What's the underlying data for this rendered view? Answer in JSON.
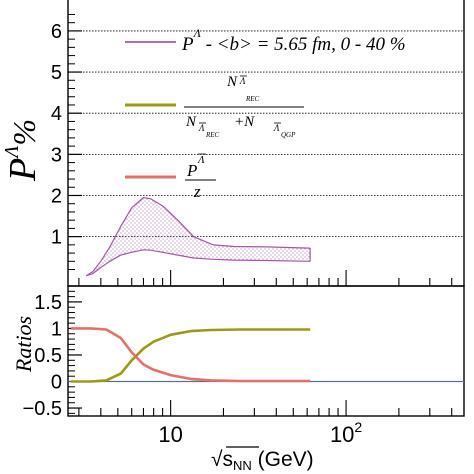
{
  "chart_data": [
    {
      "type": "area",
      "panel": "top",
      "ylabel": "P^Λ %",
      "ylabel_parts": {
        "main": "P",
        "sup": "Λ",
        "unit": "%"
      },
      "ylim": [
        -0.2,
        6.8
      ],
      "yticks": [
        "1",
        "2",
        "3",
        "4",
        "5",
        "6"
      ],
      "y_tick_values": [
        1,
        2,
        3,
        4,
        5,
        6
      ],
      "grid": true,
      "x_log": true,
      "legend": [
        {
          "label": "P^Λ - <b> = 5.65 fm, 0 - 40 %",
          "color": "#a05aa5"
        },
        {
          "label": "N_Λ_REC / (N_Λ_REC + N_Λ_QGP)",
          "color": "#9a9a18"
        },
        {
          "label": "P^Λ / z",
          "color": "#e2706b"
        }
      ],
      "legend_text": {
        "band_main": "P",
        "band_sup": "Λ",
        "band_rest": " - <b> = 5.65 fm, 0 - 40 %",
        "frac_num": "N",
        "frac_den_a": "N",
        "frac_den_plus": "+N",
        "sub_lambda": "Λ",
        "sub_rec": "REC",
        "sub_qgp": "QGP",
        "pz_num": "P",
        "pz_sup": "Λ",
        "pz_den": "z"
      },
      "series": [
        {
          "name": "P^Λ - <b> = 5.65 fm, 0 - 40 %",
          "color": "#a05aa5",
          "x": [
            3.3,
            3.6,
            4.0,
            4.5,
            5.2,
            6.0,
            7.0,
            7.7,
            9.0,
            11.0,
            13.5,
            17.5,
            23.0,
            35.0,
            62.4
          ],
          "upper": [
            0.05,
            0.15,
            0.4,
            0.75,
            1.25,
            1.7,
            1.95,
            1.92,
            1.75,
            1.4,
            1.0,
            0.8,
            0.76,
            0.75,
            0.72
          ],
          "lower": [
            0.05,
            0.1,
            0.25,
            0.4,
            0.55,
            0.62,
            0.68,
            0.67,
            0.62,
            0.55,
            0.48,
            0.45,
            0.43,
            0.42,
            0.4
          ]
        }
      ]
    },
    {
      "type": "line",
      "panel": "bottom",
      "ylabel": "Ratios",
      "ylim": [
        -0.65,
        1.8
      ],
      "yticks": [
        "−0.5",
        "0",
        "0.5",
        "1",
        "1.5"
      ],
      "y_tick_values": [
        -0.5,
        0,
        0.5,
        1,
        1.5
      ],
      "xlabel": "√sNN (GeV)",
      "xlabel_parts": {
        "root": "√",
        "s": "s",
        "sub": "NN",
        "unit": " (GeV)"
      },
      "x_log": true,
      "xlim": [
        2.6,
        470
      ],
      "xticks": [
        {
          "value": 10,
          "label": "10",
          "sup": ""
        },
        {
          "value": 100,
          "label": "10",
          "sup": "2"
        }
      ],
      "series": [
        {
          "name": "N_Λ_REC / (N_Λ_REC + N_Λ_QGP)",
          "color": "#9a9a18",
          "x": [
            2.7,
            3.5,
            4.3,
            5.2,
            6.0,
            7.0,
            8.0,
            10.0,
            13.0,
            17.0,
            25.0,
            40.0,
            62.4
          ],
          "values": [
            0.0,
            0.0,
            0.02,
            0.15,
            0.4,
            0.62,
            0.75,
            0.88,
            0.95,
            0.97,
            0.98,
            0.98,
            0.98
          ]
        },
        {
          "name": "P^Λ / z",
          "color": "#e2706b",
          "x": [
            2.7,
            3.5,
            4.3,
            5.2,
            6.0,
            7.0,
            8.0,
            10.0,
            13.0,
            17.0,
            25.0,
            40.0,
            62.4
          ],
          "values": [
            1.0,
            1.0,
            0.98,
            0.82,
            0.55,
            0.32,
            0.22,
            0.12,
            0.05,
            0.02,
            0.01,
            0.01,
            0.01
          ]
        }
      ]
    }
  ]
}
